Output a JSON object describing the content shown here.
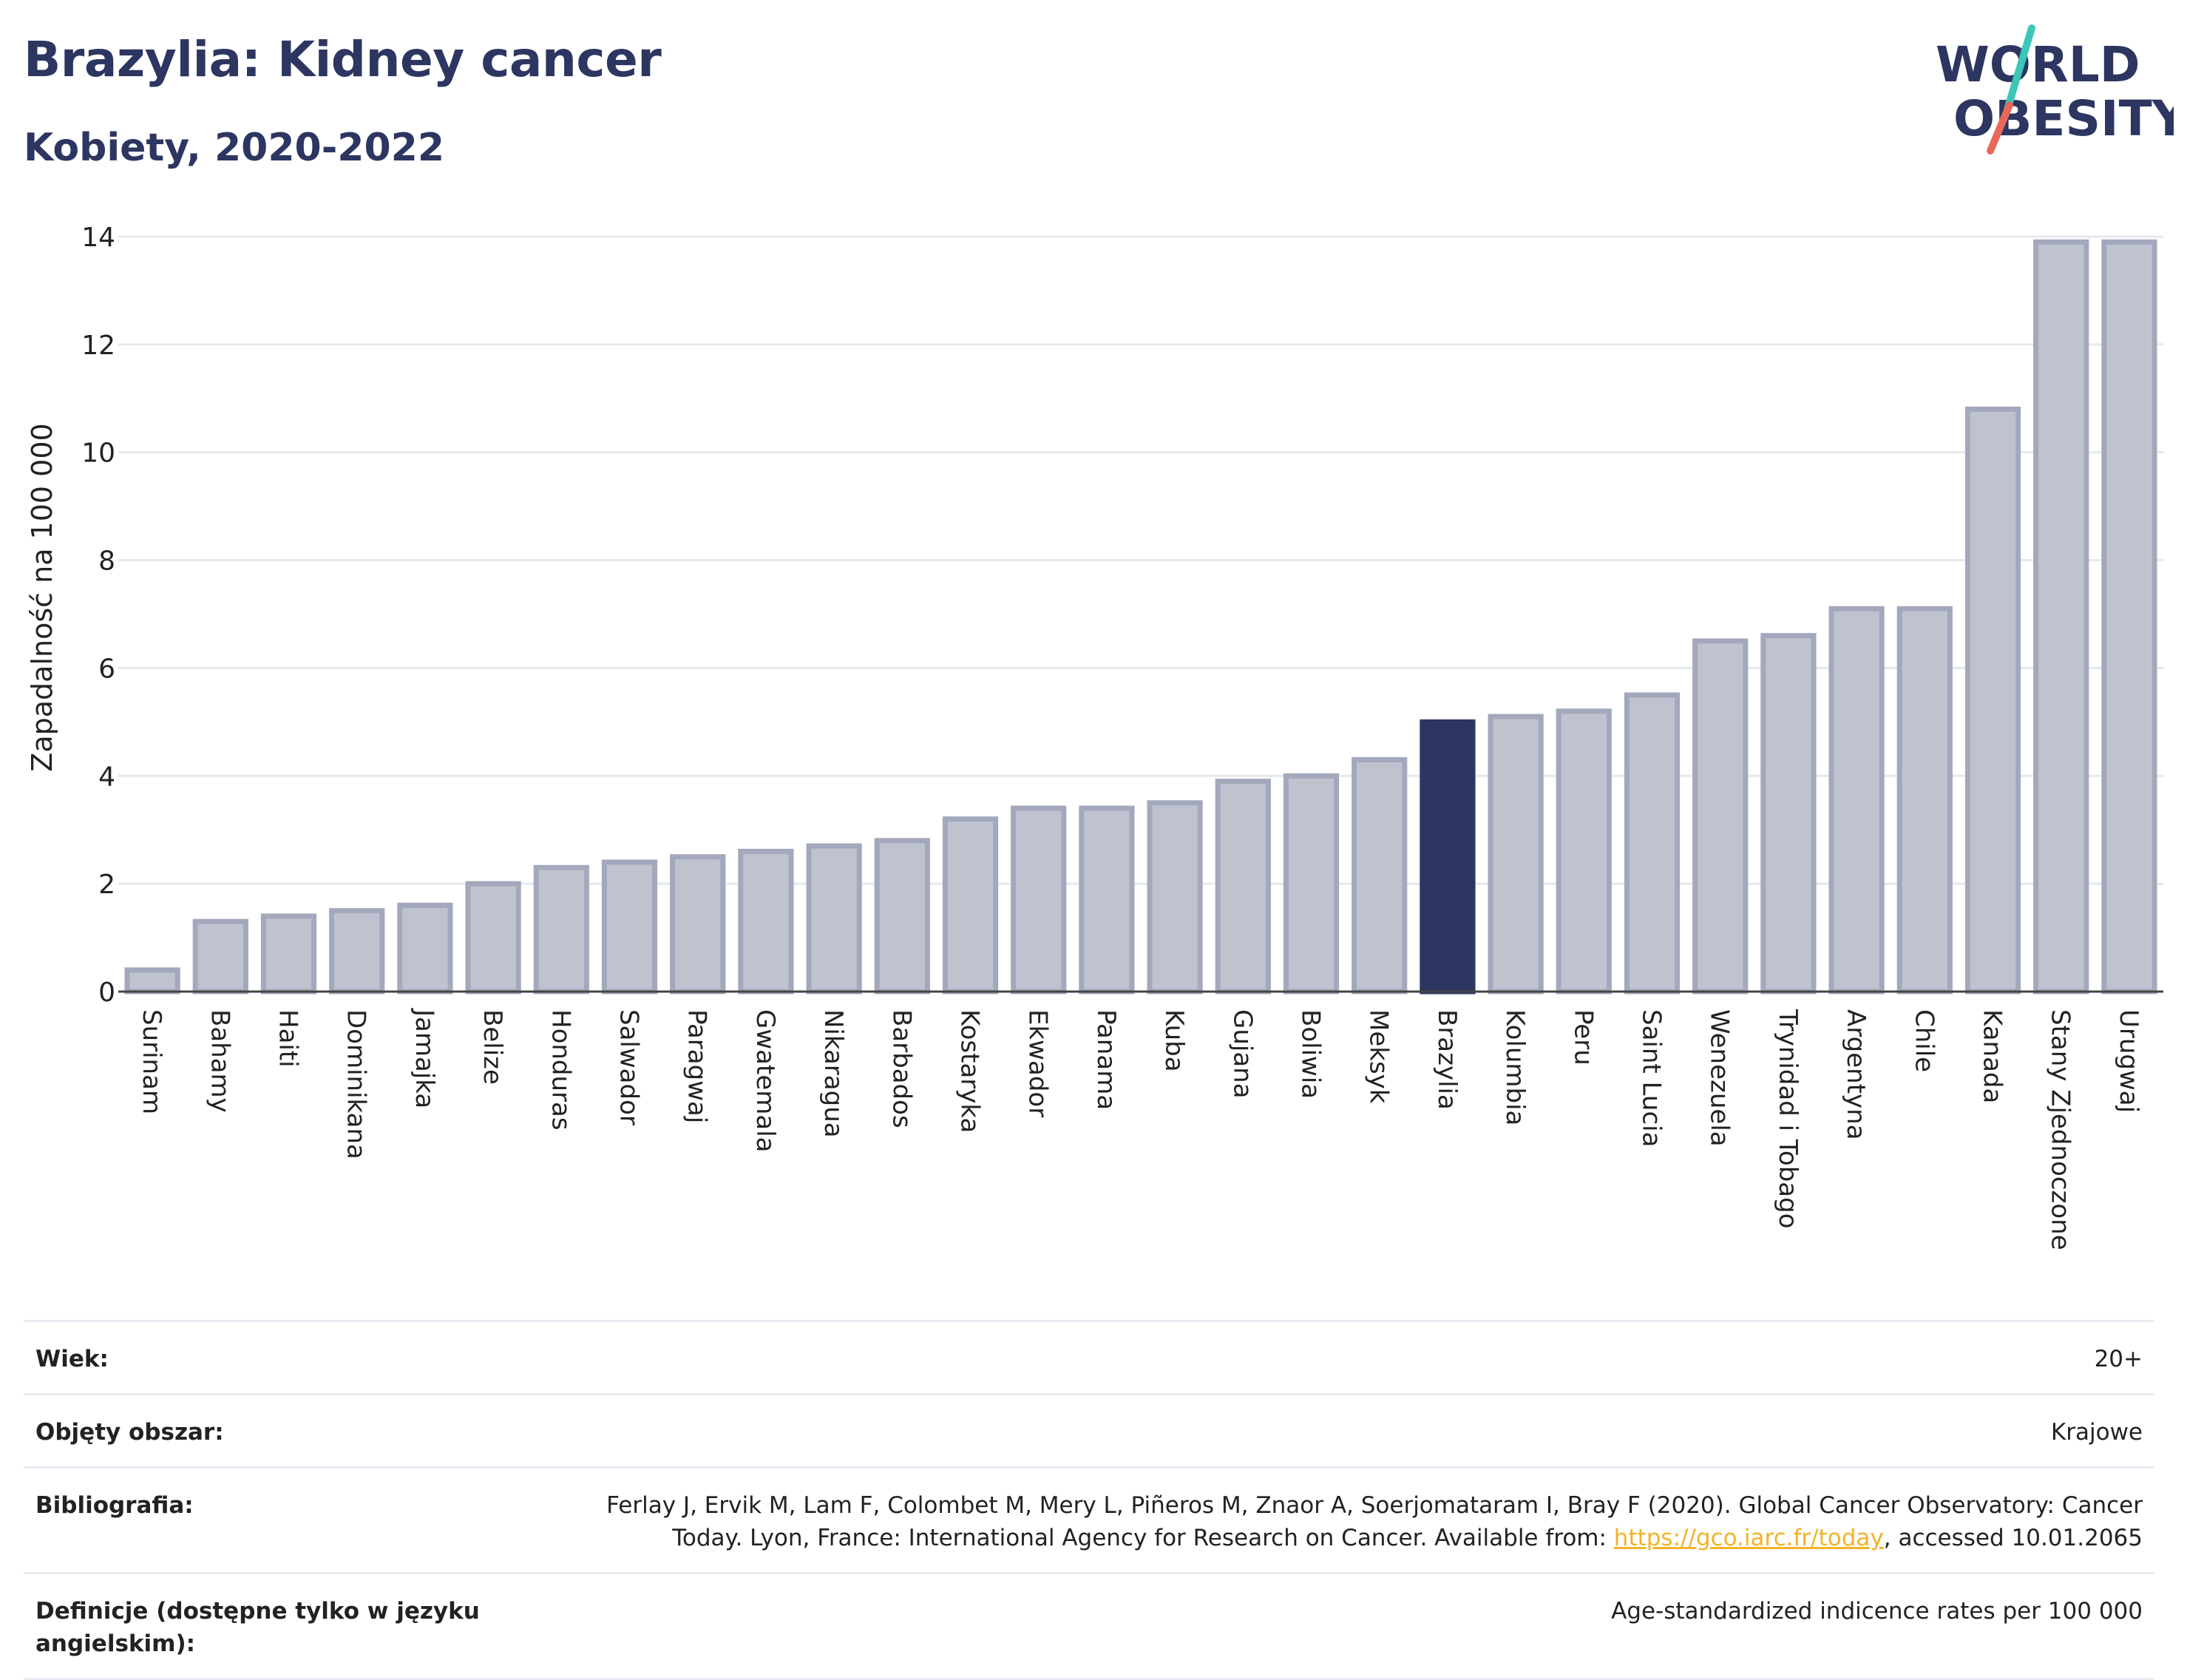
{
  "header": {
    "title": "Brazylia: Kidney cancer",
    "subtitle": "Kobiety, 2020-2022"
  },
  "logo": {
    "line1": "WORLD",
    "line2": "OBESITY",
    "colors": {
      "text": "#2d3561",
      "slash_top": "#3cc6b8",
      "slash_bottom": "#e8685a"
    }
  },
  "chart_data": {
    "type": "bar",
    "ylabel": "Zapadalność na 100 000",
    "ylim": [
      0,
      14
    ],
    "yticks": [
      0,
      2,
      4,
      6,
      8,
      10,
      12,
      14
    ],
    "grid": true,
    "highlight": "Brazylia",
    "colors": {
      "default": "#bfc3d0",
      "default_border": "#a3a8bc",
      "highlight": "#2d3561"
    },
    "categories": [
      "Surinam",
      "Bahamy",
      "Haiti",
      "Dominikana",
      "Jamajka",
      "Belize",
      "Honduras",
      "Salwador",
      "Paragwaj",
      "Gwatemala",
      "Nikaragua",
      "Barbados",
      "Kostaryka",
      "Ekwador",
      "Panama",
      "Kuba",
      "Gujana",
      "Boliwia",
      "Meksyk",
      "Brazylia",
      "Kolumbia",
      "Peru",
      "Saint Lucia",
      "Wenezuela",
      "Trynidad i Tobago",
      "Argentyna",
      "Chile",
      "Kanada",
      "Stany Zjednoczone",
      "Urugwaj"
    ],
    "values": [
      0.4,
      1.3,
      1.4,
      1.5,
      1.6,
      2.0,
      2.3,
      2.4,
      2.5,
      2.6,
      2.7,
      2.8,
      3.2,
      3.4,
      3.4,
      3.5,
      3.9,
      4.0,
      4.3,
      5.0,
      5.1,
      5.2,
      5.5,
      6.5,
      6.6,
      7.1,
      7.1,
      10.8,
      13.9,
      13.9
    ]
  },
  "info": [
    {
      "key": "Wiek:",
      "value": "20+"
    },
    {
      "key": "Objęty obszar:",
      "value": "Krajowe"
    },
    {
      "key": "Bibliografia:",
      "value_before": "Ferlay J, Ervik M, Lam F, Colombet M, Mery L, Piñeros M, Znaor A, Soerjomataram I, Bray F (2020). Global Cancer Observatory: Cancer Today. Lyon, France: International Agency for Research on Cancer. Available from: ",
      "link": "https://gco.iarc.fr/today",
      "value_after": ", accessed 10.01.2065"
    },
    {
      "key": "Definicje (dostępne tylko w języku angielskim):",
      "value": "Age-standardized indicence rates per 100 000"
    }
  ]
}
